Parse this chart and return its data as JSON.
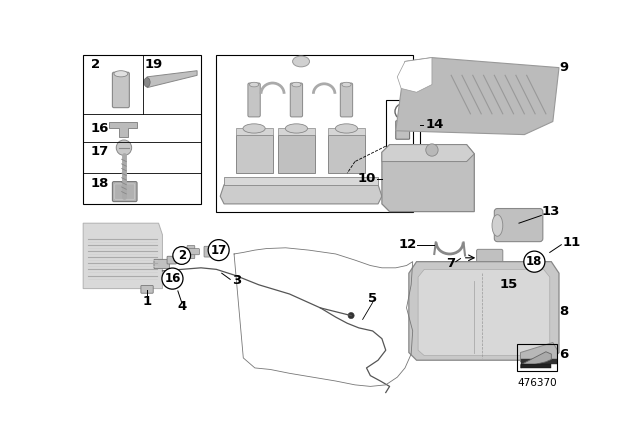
{
  "background_color": "#ffffff",
  "fig_width": 6.4,
  "fig_height": 4.48,
  "dpi": 100,
  "part_number": "476370",
  "gray1": "#d8d8d8",
  "gray2": "#b8b8b8",
  "gray3": "#989898",
  "gray4": "#c0c0c0",
  "label_fontsize": 8.5,
  "bold_fontsize": 9.5
}
